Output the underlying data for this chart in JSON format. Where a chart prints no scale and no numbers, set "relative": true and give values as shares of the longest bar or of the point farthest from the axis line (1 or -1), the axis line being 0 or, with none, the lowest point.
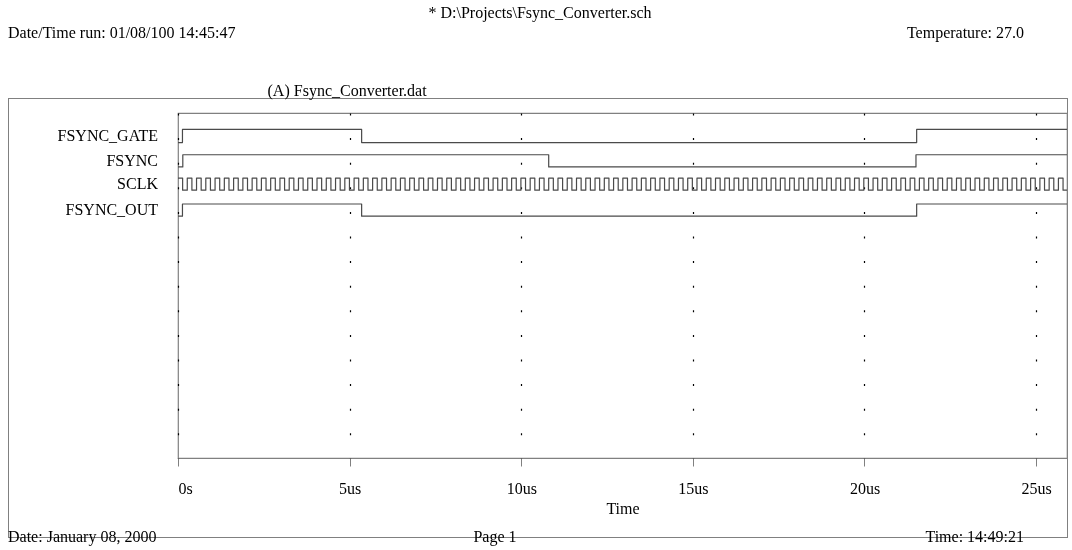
{
  "chart_data": {
    "type": "step",
    "title": "(A) Fsync_Converter.dat",
    "xlabel": "Time",
    "relative": true,
    "grid": "x",
    "annotations": [
      "* D:\\Projects\\Fsync_Converter.sch",
      "Date/Time run: 01/08/100 14:45:47",
      "Temperature: 27.0",
      "Date: January 08, 2000",
      "Page 1",
      "Time: 14:49:21"
    ],
    "xlim": [
      0,
      25.9
    ],
    "xticks": [
      {
        "value": 0,
        "label": "0s"
      },
      {
        "value": 5,
        "label": "5us"
      },
      {
        "value": 10,
        "label": "10us"
      },
      {
        "value": 15,
        "label": "15us"
      },
      {
        "value": 20,
        "label": "20us"
      },
      {
        "value": 25,
        "label": "25us"
      }
    ],
    "series": [
      {
        "name": "FSYNC_GATE",
        "color": "#4a4a4a",
        "x": [
          0,
          0.13,
          5.35,
          21.52,
          25.9
        ],
        "values": [
          0.96,
          1,
          0.96,
          1,
          1
        ]
      },
      {
        "name": "FSYNC",
        "color": "#4a4a4a",
        "x": [
          0,
          0.14,
          10.8,
          21.5,
          25.9
        ],
        "values": [
          0.886,
          0.923,
          0.886,
          0.923,
          0.923
        ]
      },
      {
        "name": "SCLK",
        "color": "#4a4a4a",
        "x": [
          0,
          0.135,
          0.27,
          0.405,
          0.54,
          0.675,
          0.81,
          0.945,
          1.08,
          1.215,
          1.35,
          1.485,
          1.62,
          1.755,
          1.89,
          2.025,
          2.16,
          2.295,
          2.43,
          2.565,
          2.7,
          2.835,
          2.97,
          3.105,
          3.24,
          3.375,
          3.51,
          3.645,
          3.78,
          3.915,
          4.05,
          4.185,
          4.32,
          4.455,
          4.59,
          4.725,
          4.86,
          4.995,
          5.13,
          5.265,
          5.4,
          5.535,
          5.67,
          5.805,
          5.94,
          6.075,
          6.21,
          6.345,
          6.48,
          6.615,
          6.75,
          6.885,
          7.02,
          7.155,
          7.29,
          7.425,
          7.56,
          7.695,
          7.83,
          7.965,
          8.1,
          8.235,
          8.37,
          8.505,
          8.64,
          8.775,
          8.91,
          9.045,
          9.18,
          9.315,
          9.45,
          9.585,
          9.72,
          9.855,
          9.99,
          10.125,
          10.26,
          10.395,
          10.53,
          10.665,
          10.8,
          10.935,
          11.07,
          11.205,
          11.34,
          11.475,
          11.61,
          11.745,
          11.88,
          12.015,
          12.15,
          12.285,
          12.42,
          12.555,
          12.69,
          12.825,
          12.96,
          13.095,
          13.23,
          13.365,
          13.5,
          13.635,
          13.77,
          13.905,
          14.04,
          14.175,
          14.31,
          14.445,
          14.58,
          14.715,
          14.85,
          14.985,
          15.12,
          15.255,
          15.39,
          15.525,
          15.66,
          15.795,
          15.93,
          16.065,
          16.2,
          16.335,
          16.47,
          16.605,
          16.74,
          16.875,
          17.01,
          17.145,
          17.28,
          17.415,
          17.55,
          17.685,
          17.82,
          17.955,
          18.09,
          18.225,
          18.36,
          18.495,
          18.63,
          18.765,
          18.9,
          19.035,
          19.17,
          19.305,
          19.44,
          19.575,
          19.71,
          19.845,
          19.98,
          20.115,
          20.25,
          20.385,
          20.52,
          20.655,
          20.79,
          20.925,
          21.06,
          21.195,
          21.33,
          21.465,
          21.6,
          21.735,
          21.87,
          22.005,
          22.14,
          22.275,
          22.41,
          22.545,
          22.68,
          22.815,
          22.95,
          23.085,
          23.22,
          23.355,
          23.49,
          23.625,
          23.76,
          23.895,
          24.03,
          24.165,
          24.3,
          24.435,
          24.57,
          24.705,
          24.84,
          24.975,
          25.11,
          25.245,
          25.38,
          25.515,
          25.65,
          25.785,
          25.9
        ],
        "values": [
          0.852,
          0.815,
          0.852,
          0.815,
          0.852,
          0.815,
          0.852,
          0.815,
          0.852,
          0.815,
          0.852,
          0.815,
          0.852,
          0.815,
          0.852,
          0.815,
          0.852,
          0.815,
          0.852,
          0.815,
          0.852,
          0.815,
          0.852,
          0.815,
          0.852,
          0.815,
          0.852,
          0.815,
          0.852,
          0.815,
          0.852,
          0.815,
          0.852,
          0.815,
          0.852,
          0.815,
          0.852,
          0.815,
          0.852,
          0.815,
          0.852,
          0.815,
          0.852,
          0.815,
          0.852,
          0.815,
          0.852,
          0.815,
          0.852,
          0.815,
          0.852,
          0.815,
          0.852,
          0.815,
          0.852,
          0.815,
          0.852,
          0.815,
          0.852,
          0.815,
          0.852,
          0.815,
          0.852,
          0.815,
          0.852,
          0.815,
          0.852,
          0.815,
          0.852,
          0.815,
          0.852,
          0.815,
          0.852,
          0.815,
          0.852,
          0.815,
          0.852,
          0.815,
          0.852,
          0.815,
          0.852,
          0.815,
          0.852,
          0.815,
          0.852,
          0.815,
          0.852,
          0.815,
          0.852,
          0.815,
          0.852,
          0.815,
          0.852,
          0.815,
          0.852,
          0.815,
          0.852,
          0.815,
          0.852,
          0.815,
          0.852,
          0.815,
          0.852,
          0.815,
          0.852,
          0.815,
          0.852,
          0.815,
          0.852,
          0.815,
          0.852,
          0.815,
          0.852,
          0.815,
          0.852,
          0.815,
          0.852,
          0.815,
          0.852,
          0.815,
          0.852,
          0.815,
          0.852,
          0.815,
          0.852,
          0.815,
          0.852,
          0.815,
          0.852,
          0.815,
          0.852,
          0.815,
          0.852,
          0.815,
          0.852,
          0.815,
          0.852,
          0.815,
          0.852,
          0.815,
          0.852,
          0.815,
          0.852,
          0.815,
          0.852,
          0.815,
          0.852,
          0.815,
          0.852,
          0.815,
          0.852,
          0.815,
          0.852,
          0.815,
          0.852,
          0.815,
          0.852,
          0.815,
          0.852,
          0.815,
          0.852,
          0.815,
          0.852,
          0.815,
          0.852,
          0.815,
          0.852,
          0.815,
          0.852,
          0.815,
          0.852,
          0.815,
          0.852,
          0.815,
          0.852,
          0.815,
          0.852,
          0.815,
          0.852,
          0.815,
          0.852,
          0.815,
          0.852,
          0.815,
          0.852,
          0.815,
          0.852,
          0.815,
          0.852,
          0.815,
          0.852,
          0.815,
          0.815
        ]
      },
      {
        "name": "FSYNC_OUT",
        "color": "#4a4a4a",
        "x": [
          0,
          0.13,
          5.35,
          21.52,
          25.9
        ],
        "values": [
          0.736,
          0.773,
          0.736,
          0.773,
          0.773
        ]
      }
    ]
  }
}
